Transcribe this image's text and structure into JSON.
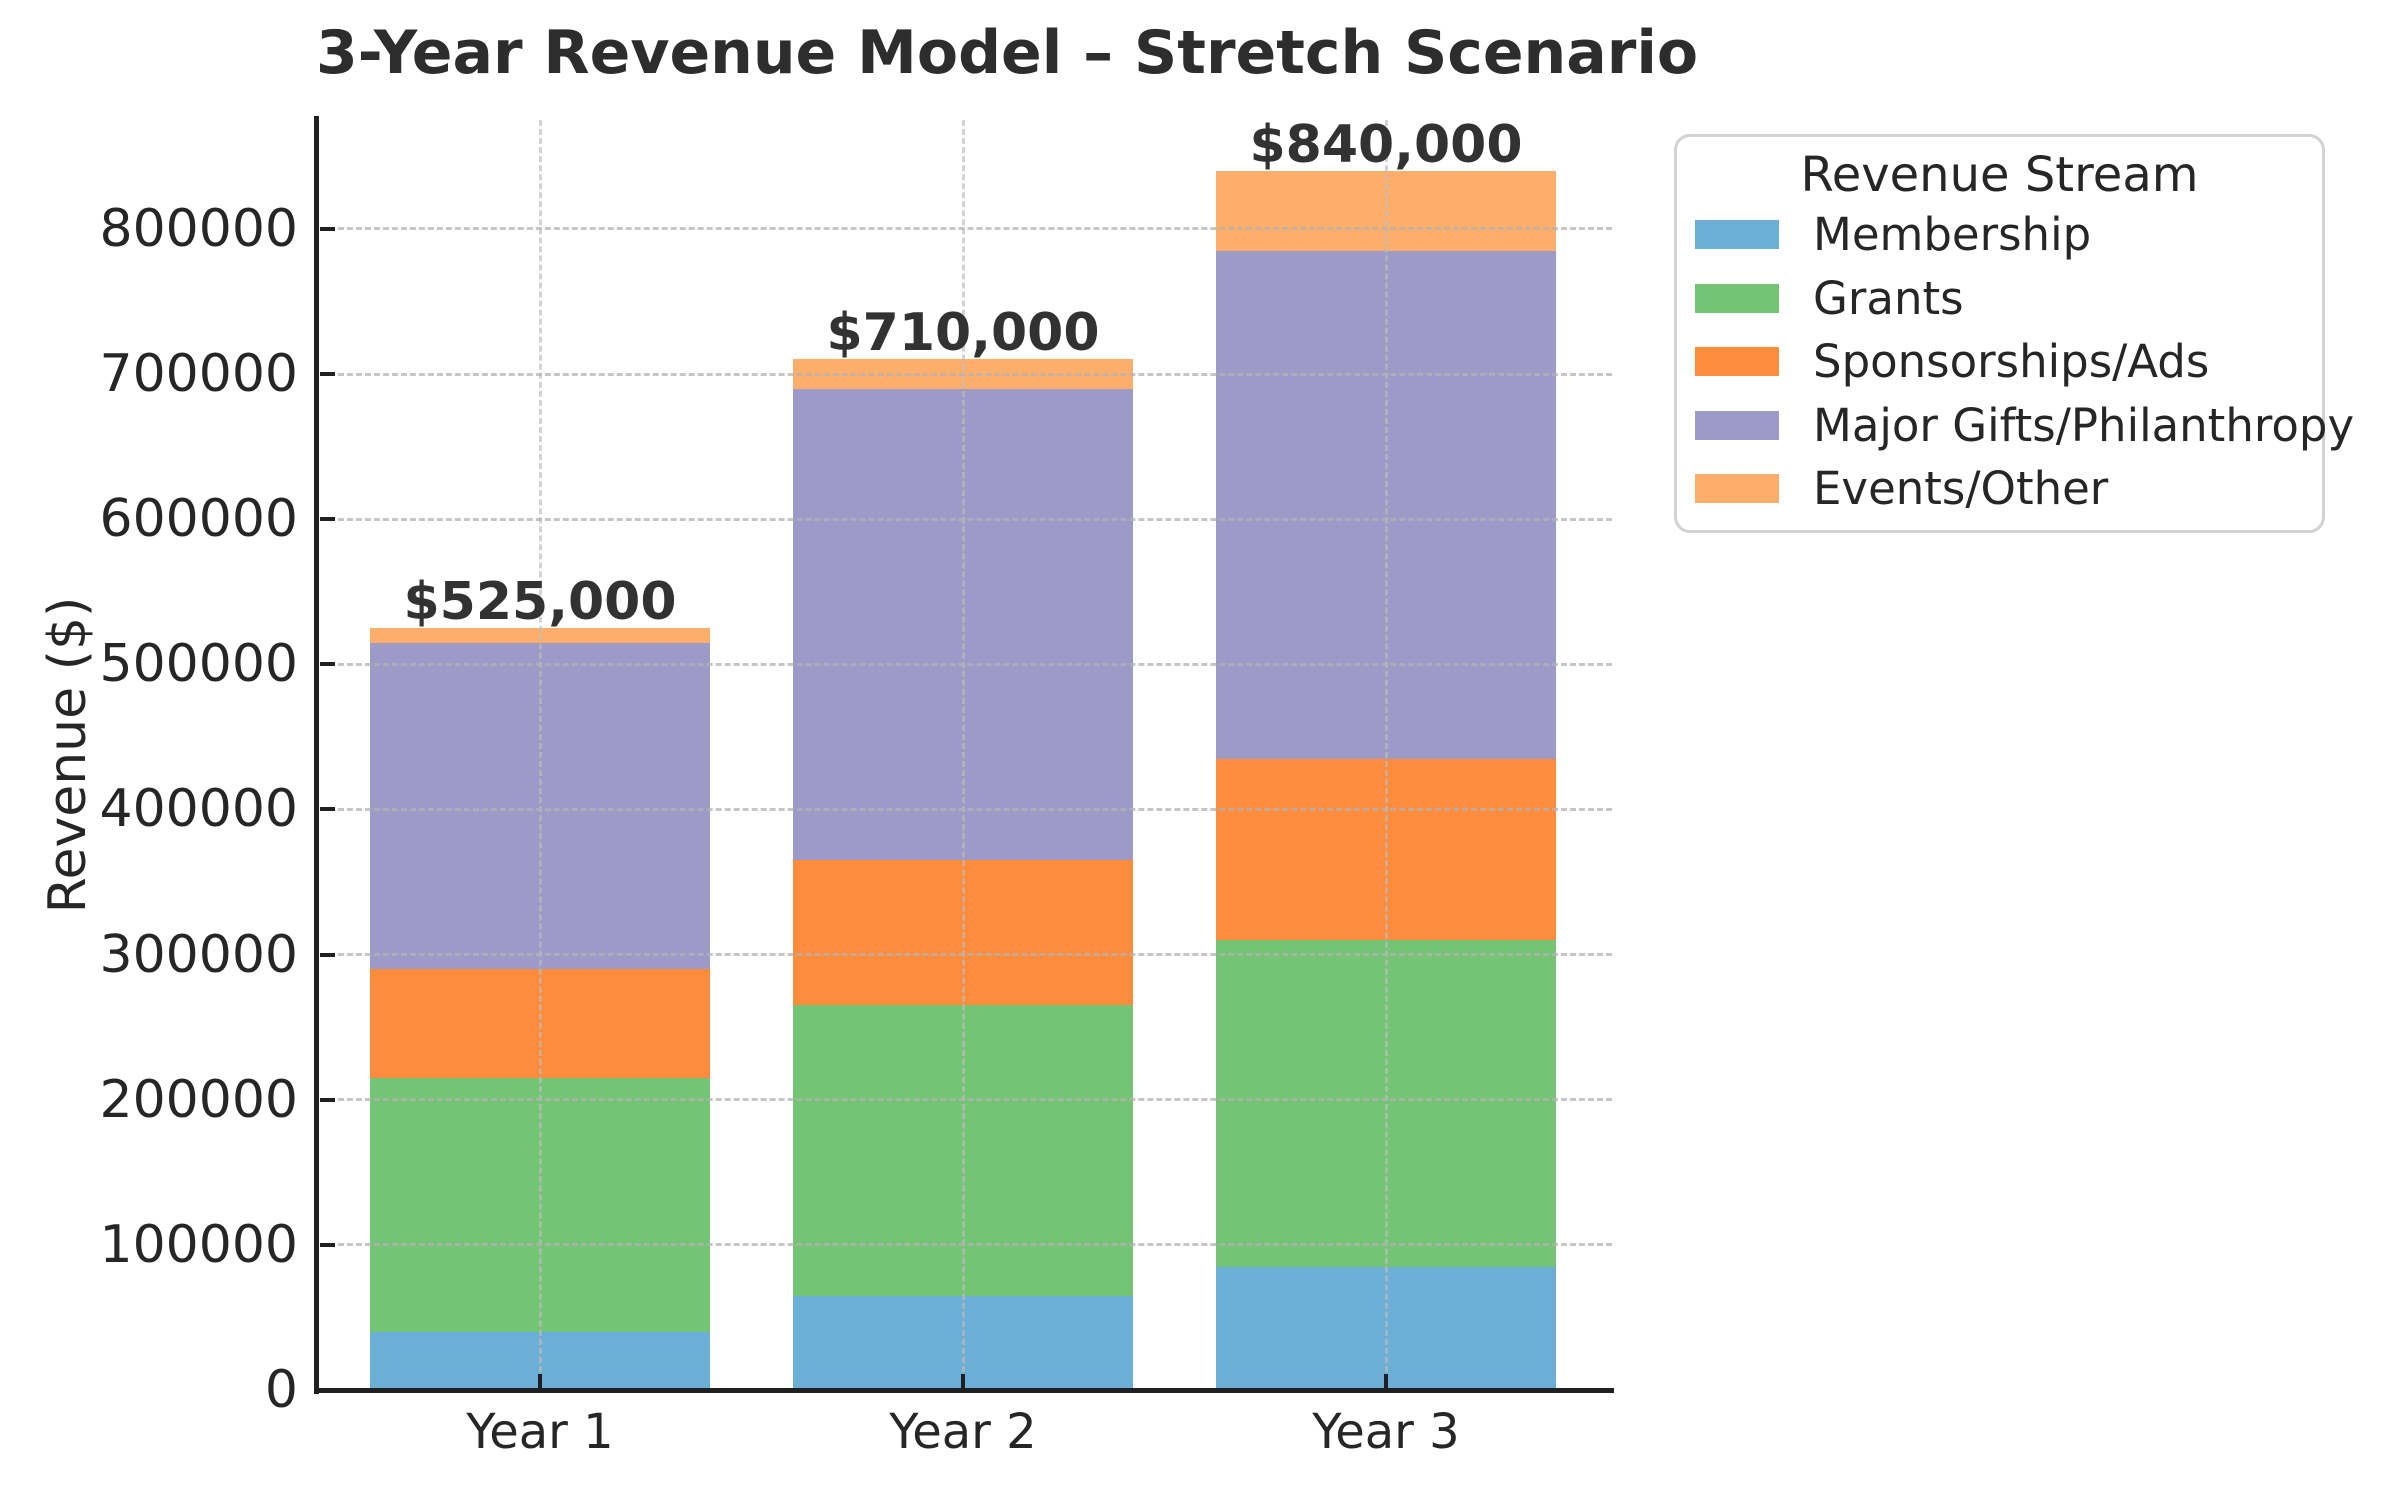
{
  "chart_data": {
    "type": "bar",
    "stacked": true,
    "title": "3-Year Revenue Model – Stretch Scenario",
    "xlabel": "",
    "ylabel": "Revenue ($)",
    "categories": [
      "Year 1",
      "Year 2",
      "Year 3"
    ],
    "series": [
      {
        "name": "Membership",
        "color": "#6baed6",
        "values": [
          40000,
          65000,
          85000
        ]
      },
      {
        "name": "Grants",
        "color": "#74c476",
        "values": [
          175000,
          200000,
          225000
        ]
      },
      {
        "name": "Sponsorships/Ads",
        "color": "#fd8d3c",
        "values": [
          75000,
          100000,
          125000
        ]
      },
      {
        "name": "Major Gifts/Philanthropy",
        "color": "#9e9ac8",
        "values": [
          225000,
          325000,
          350000
        ]
      },
      {
        "name": "Events/Other",
        "color": "#fdae6b",
        "values": [
          10000,
          20000,
          55000
        ]
      }
    ],
    "totals": [
      525000,
      710000,
      840000
    ],
    "total_labels": [
      "$525,000",
      "$710,000",
      "$840,000"
    ],
    "ylim": [
      0,
      875000
    ],
    "yticks": [
      0,
      100000,
      200000,
      300000,
      400000,
      500000,
      600000,
      700000,
      800000
    ],
    "ytick_labels": [
      "0",
      "100000",
      "200000",
      "300000",
      "400000",
      "500000",
      "600000",
      "700000",
      "800000"
    ],
    "grid": true,
    "grid_style": "dashed",
    "legend": {
      "title": "Revenue Stream",
      "position": "upper right"
    },
    "colors": {
      "text": "#262626",
      "title_text": "#2d2d2d",
      "annotation_text": "#323232",
      "axis_spine": "#202020",
      "gridline": "#b3b3b3",
      "background": "#ffffff",
      "legend_border": "#d2d2d2"
    }
  }
}
